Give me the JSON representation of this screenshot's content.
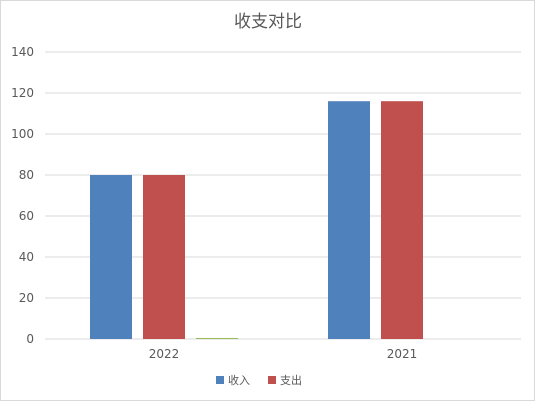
{
  "chart_data": {
    "type": "bar",
    "title": "收支对比",
    "categories": [
      "2022",
      "2021"
    ],
    "series": [
      {
        "name": "收入",
        "color": "#4f81bd",
        "values": [
          80,
          116
        ]
      },
      {
        "name": "支出",
        "color": "#c0504d",
        "values": [
          80,
          116
        ]
      },
      {
        "color": "#9bbb59",
        "values": [
          0.5,
          0
        ]
      }
    ],
    "ylim": [
      0,
      140
    ],
    "yticks": [
      "0",
      "20",
      "40",
      "60",
      "80",
      "100",
      "120",
      "140"
    ],
    "grid": true,
    "legend_position": "bottom",
    "xlabel": "",
    "ylabel": ""
  }
}
